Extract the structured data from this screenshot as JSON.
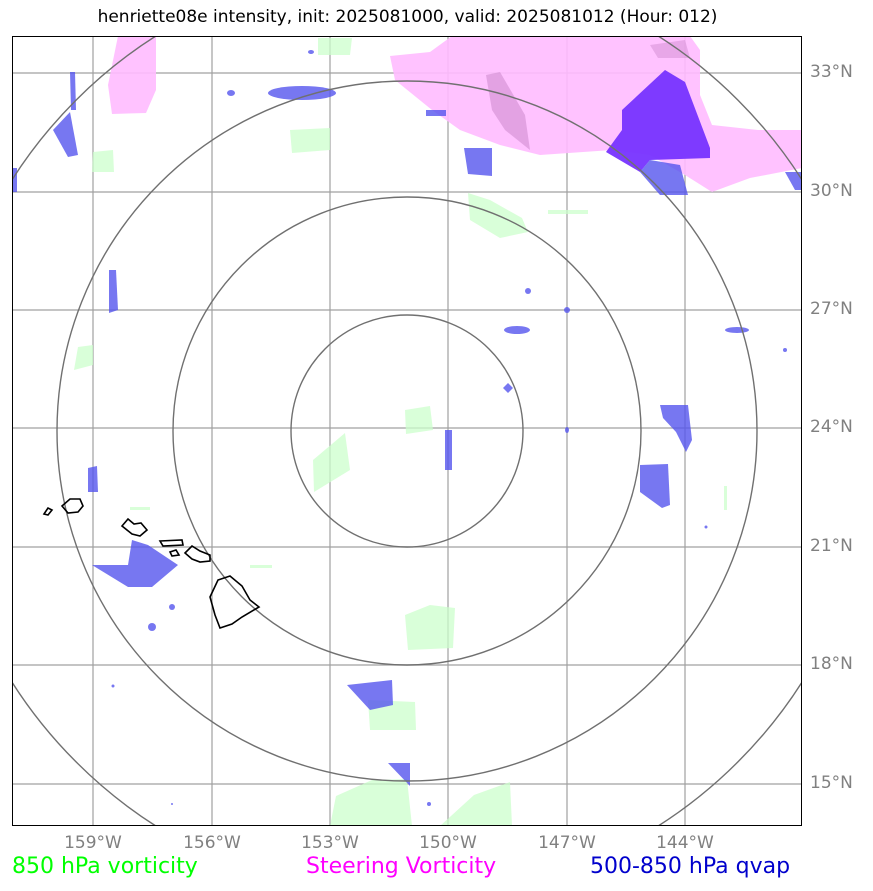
{
  "title": "henriette08e intensity, init: 2025081000, valid: 2025081012 (Hour: 012)",
  "lat_labels": [
    "33°N",
    "30°N",
    "27°N",
    "24°N",
    "21°N",
    "18°N",
    "15°N"
  ],
  "lon_labels": [
    "159°W",
    "156°W",
    "153°W",
    "150°W",
    "147°W",
    "144°W"
  ],
  "legend": {
    "vorticity_850": "850 hPa vorticity",
    "steering": "Steering Vorticity",
    "qvap": "500-850 hPa qvap"
  },
  "colors": {
    "vorticity_850": "#00ff00",
    "steering": "#ff00ff",
    "qvap": "#0000cc",
    "grid": "#a0a0a0",
    "range_rings": "#707070",
    "coastline": "#000000"
  }
}
